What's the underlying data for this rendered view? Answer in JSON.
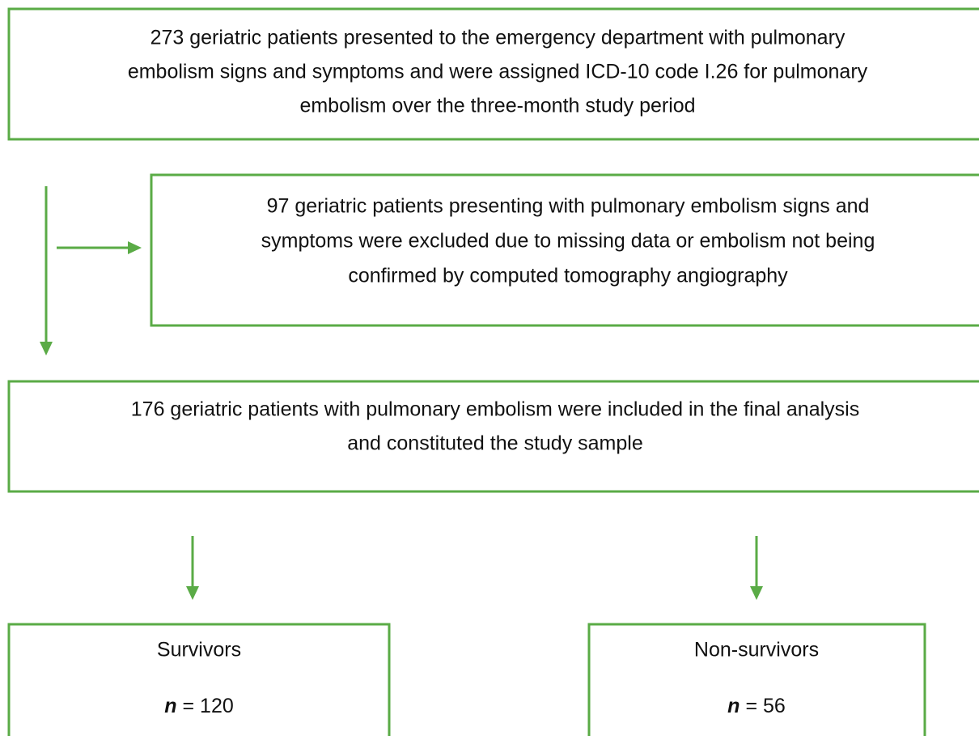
{
  "nodes": [
    {
      "lines": [
        "273 geriatric patients presented to the emergency department with pulmonary",
        "embolism signs and symptoms and were assigned ICD-10 code I.26 for pulmonary",
        "embolism over the three-month study period"
      ]
    },
    {
      "lines": [
        "97 geriatric patients presenting with pulmonary embolism signs and",
        "symptoms were excluded due to missing data or embolism not being",
        "confirmed by computed tomography angiography"
      ]
    },
    {
      "lines": [
        "176 geriatric patients with pulmonary embolism were included in the final analysis",
        "and constituted the study sample"
      ]
    },
    {
      "lines": [
        "Survivors"
      ],
      "count": {
        "symbol": "n",
        "text": "= 120"
      }
    },
    {
      "lines": [
        "Non-survivors"
      ],
      "count": {
        "symbol": "n",
        "text": "= 56"
      }
    }
  ]
}
